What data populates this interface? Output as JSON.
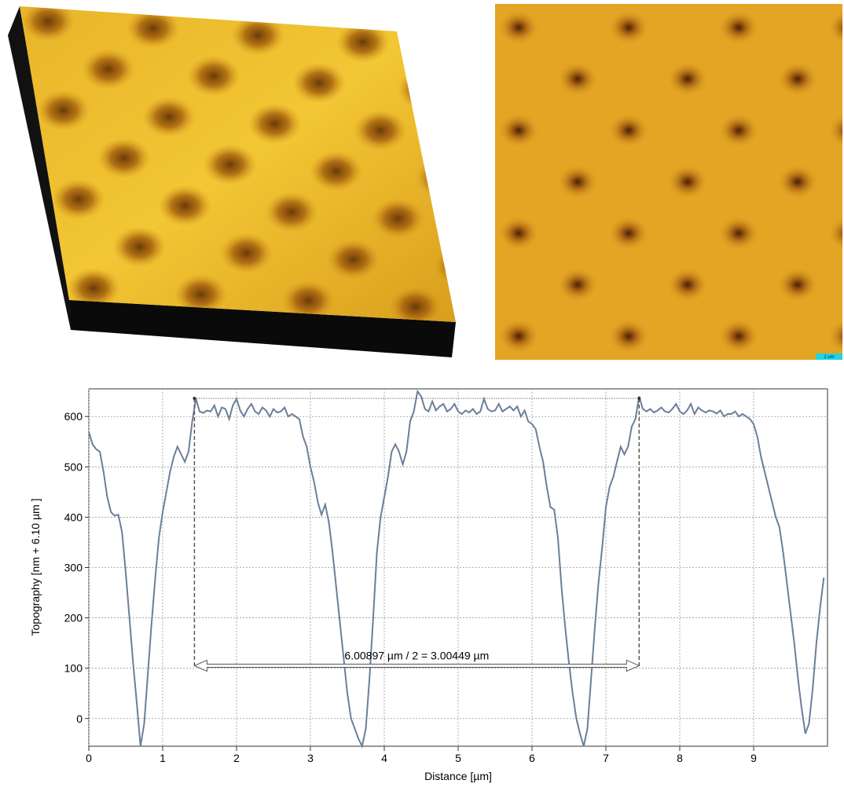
{
  "scale_bar_label": "1 um",
  "chart_data": {
    "type": "line",
    "xlabel": "Distance [µm]",
    "ylabel": "Topography [nm + 6.10 µm ]",
    "color": "#6b7f99",
    "grid": true,
    "xlim": [
      0,
      10
    ],
    "xticks": [
      0,
      1,
      2,
      3,
      4,
      5,
      6,
      7,
      8,
      9
    ],
    "ylim": [
      -55,
      655
    ],
    "yticks": [
      0,
      100,
      200,
      300,
      400,
      500,
      600
    ],
    "annotation": {
      "text": "6.00897 µm / 2 = 3.00449 µm",
      "x": [
        1.43,
        7.45
      ],
      "y": [
        105,
        636
      ]
    },
    "x": [
      0,
      0.05,
      0.1,
      0.15,
      0.2,
      0.25,
      0.3,
      0.35,
      0.4,
      0.45,
      0.5,
      0.55,
      0.6,
      0.65,
      0.7,
      0.75,
      0.8,
      0.85,
      0.9,
      0.95,
      1,
      1.05,
      1.1,
      1.15,
      1.2,
      1.25,
      1.3,
      1.35,
      1.4,
      1.45,
      1.5,
      1.55,
      1.6,
      1.65,
      1.7,
      1.75,
      1.8,
      1.85,
      1.9,
      1.95,
      2,
      2.05,
      2.1,
      2.15,
      2.2,
      2.25,
      2.3,
      2.35,
      2.4,
      2.45,
      2.5,
      2.55,
      2.6,
      2.65,
      2.7,
      2.75,
      2.8,
      2.85,
      2.9,
      2.95,
      3,
      3.05,
      3.1,
      3.15,
      3.2,
      3.25,
      3.3,
      3.35,
      3.4,
      3.45,
      3.5,
      3.55,
      3.6,
      3.65,
      3.7,
      3.75,
      3.8,
      3.85,
      3.9,
      3.95,
      4,
      4.05,
      4.1,
      4.15,
      4.2,
      4.25,
      4.3,
      4.35,
      4.4,
      4.45,
      4.5,
      4.55,
      4.6,
      4.65,
      4.7,
      4.75,
      4.8,
      4.85,
      4.9,
      4.95,
      5,
      5.05,
      5.1,
      5.15,
      5.2,
      5.25,
      5.3,
      5.35,
      5.4,
      5.45,
      5.5,
      5.55,
      5.6,
      5.65,
      5.7,
      5.75,
      5.8,
      5.85,
      5.9,
      5.95,
      6,
      6.05,
      6.1,
      6.15,
      6.2,
      6.25,
      6.3,
      6.35,
      6.4,
      6.45,
      6.5,
      6.55,
      6.6,
      6.65,
      6.7,
      6.75,
      6.8,
      6.85,
      6.9,
      6.95,
      7,
      7.05,
      7.1,
      7.15,
      7.2,
      7.25,
      7.3,
      7.35,
      7.4,
      7.45,
      7.5,
      7.55,
      7.6,
      7.65,
      7.7,
      7.75,
      7.8,
      7.85,
      7.9,
      7.95,
      8,
      8.05,
      8.1,
      8.15,
      8.2,
      8.25,
      8.3,
      8.35,
      8.4,
      8.45,
      8.5,
      8.55,
      8.6,
      8.65,
      8.7,
      8.75,
      8.8,
      8.85,
      8.9,
      8.95,
      9,
      9.05,
      9.1,
      9.15,
      9.2,
      9.25,
      9.3,
      9.35,
      9.4,
      9.45,
      9.5,
      9.55,
      9.6,
      9.65,
      9.7,
      9.75,
      9.8,
      9.85,
      9.9,
      9.95
    ],
    "values": [
      570,
      545,
      535,
      530,
      490,
      440,
      410,
      403,
      405,
      370,
      290,
      200,
      110,
      30,
      -55,
      -10,
      90,
      190,
      280,
      360,
      410,
      450,
      490,
      520,
      540,
      525,
      510,
      530,
      590,
      635,
      610,
      607,
      612,
      610,
      622,
      600,
      618,
      615,
      595,
      622,
      635,
      612,
      600,
      615,
      625,
      610,
      605,
      618,
      612,
      600,
      615,
      608,
      610,
      618,
      600,
      605,
      600,
      595,
      560,
      540,
      500,
      470,
      430,
      405,
      425,
      390,
      330,
      260,
      190,
      120,
      50,
      0,
      -20,
      -40,
      -55,
      -20,
      80,
      200,
      330,
      400,
      440,
      480,
      530,
      545,
      530,
      505,
      530,
      590,
      610,
      650,
      640,
      615,
      610,
      630,
      612,
      620,
      625,
      610,
      615,
      625,
      610,
      605,
      612,
      608,
      615,
      605,
      610,
      635,
      615,
      610,
      612,
      625,
      610,
      615,
      620,
      612,
      620,
      600,
      612,
      590,
      585,
      575,
      540,
      510,
      460,
      420,
      415,
      360,
      260,
      180,
      110,
      50,
      0,
      -30,
      -55,
      -20,
      80,
      180,
      270,
      340,
      420,
      460,
      480,
      510,
      540,
      525,
      540,
      580,
      595,
      640,
      615,
      610,
      615,
      608,
      612,
      618,
      610,
      608,
      615,
      625,
      610,
      605,
      612,
      625,
      605,
      618,
      612,
      608,
      612,
      610,
      606,
      612,
      600,
      605,
      605,
      610,
      600,
      605,
      600,
      595,
      585,
      560,
      520,
      490,
      460,
      430,
      400,
      380,
      330,
      270,
      210,
      150,
      80,
      20,
      -30,
      -10,
      60,
      150,
      220,
      280
    ]
  }
}
